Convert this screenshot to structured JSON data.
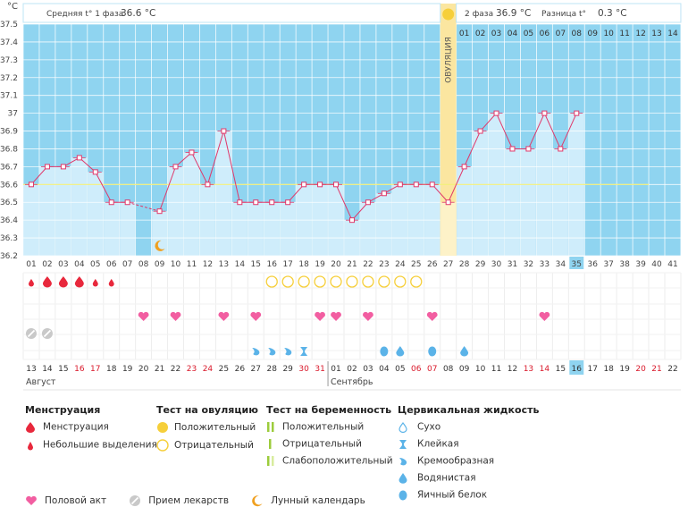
{
  "units": "°C",
  "phase1": {
    "label": "Средняя t° 1 фаза",
    "value": "36.6 °C"
  },
  "phase2": {
    "label": "2 фаза",
    "value": "36.9 °C"
  },
  "diff": {
    "label": "Разница t°",
    "value": "0.3 °C"
  },
  "ovulation_label": "ОВУЛЯЦИЯ",
  "colors": {
    "chart_bg": "#8fd4f0",
    "bar": "#cfedfb",
    "line": "#e0386a",
    "ovulation": "#fbe6a0",
    "sun": "#f6cf3a",
    "heart": "#f25ea1",
    "drop": "#e8283c",
    "water": "#5bb3e8",
    "accent_day": "#8fd4f0",
    "sunday": "#d9182a"
  },
  "chart_data": {
    "type": "line",
    "y_ticks": [
      "37.5",
      "37.4",
      "37.3",
      "37.2",
      "37.1",
      "37",
      "36.9",
      "36.8",
      "36.7",
      "36.6",
      "36.5",
      "36.4",
      "36.3",
      "36.2"
    ],
    "ylim": [
      36.2,
      37.5
    ],
    "cycle_days": [
      "01",
      "02",
      "03",
      "04",
      "05",
      "06",
      "07",
      "08",
      "09",
      "10",
      "11",
      "12",
      "13",
      "14",
      "15",
      "16",
      "17",
      "18",
      "19",
      "20",
      "21",
      "22",
      "23",
      "24",
      "25",
      "26",
      "27",
      "28",
      "29",
      "30",
      "31",
      "32",
      "33",
      "34",
      "35",
      "36",
      "37",
      "38",
      "39",
      "40",
      "41"
    ],
    "post_ovulation_days": [
      "01",
      "02",
      "03",
      "04",
      "05",
      "06",
      "07",
      "08",
      "09",
      "10",
      "11",
      "12",
      "13",
      "14"
    ],
    "temps": [
      36.6,
      36.7,
      36.7,
      36.75,
      36.67,
      36.5,
      36.5,
      null,
      36.45,
      36.7,
      36.78,
      36.6,
      36.9,
      36.5,
      36.5,
      36.5,
      36.5,
      36.6,
      36.6,
      36.6,
      36.4,
      36.5,
      36.55,
      36.6,
      36.6,
      36.6,
      36.5,
      36.7,
      36.9,
      37.0,
      36.8,
      36.8,
      37.0,
      36.8,
      37.0,
      null,
      null,
      null,
      null,
      null,
      null
    ],
    "dashed_segment": [
      7,
      9
    ],
    "coverline": 36.6,
    "ovulation_day": "27",
    "current_day": "35",
    "calendar_days": [
      "13",
      "14",
      "15",
      "16",
      "17",
      "18",
      "19",
      "20",
      "21",
      "22",
      "23",
      "24",
      "25",
      "26",
      "27",
      "28",
      "29",
      "30",
      "31",
      "01",
      "02",
      "03",
      "04",
      "05",
      "06",
      "07",
      "08",
      "09",
      "10",
      "11",
      "12",
      "13",
      "14",
      "15",
      "16",
      "17",
      "18",
      "19",
      "20",
      "21",
      "22"
    ],
    "weekend_days": [
      3,
      4,
      10,
      11,
      17,
      18,
      24,
      25,
      31,
      32,
      38,
      39
    ],
    "current_cal_index": 34,
    "month_labels": [
      {
        "index": 0,
        "label": "Август"
      },
      {
        "index": 19,
        "label": "Сентябрь"
      }
    ],
    "moon_day_index": 8,
    "menstruation": [
      {
        "i": 0,
        "type": "small"
      },
      {
        "i": 1,
        "type": "big"
      },
      {
        "i": 2,
        "type": "big"
      },
      {
        "i": 3,
        "type": "big"
      },
      {
        "i": 4,
        "type": "small"
      },
      {
        "i": 5,
        "type": "small"
      }
    ],
    "ovulation_tests": [
      15,
      16,
      17,
      18,
      19,
      20,
      21,
      22,
      23,
      24
    ],
    "hearts": [
      7,
      9,
      12,
      14,
      18,
      19,
      21,
      25,
      32
    ],
    "medicine": [
      0,
      1
    ],
    "cervical": [
      {
        "i": 14,
        "type": "creamy"
      },
      {
        "i": 15,
        "type": "creamy"
      },
      {
        "i": 16,
        "type": "creamy"
      },
      {
        "i": 17,
        "type": "sticky"
      },
      {
        "i": 22,
        "type": "eggwhite"
      },
      {
        "i": 23,
        "type": "watery"
      },
      {
        "i": 25,
        "type": "eggwhite"
      },
      {
        "i": 27,
        "type": "watery"
      }
    ]
  },
  "legend": {
    "menstruation": {
      "title": "Менструация",
      "items": [
        "Менструация",
        "Небольшие выделения"
      ]
    },
    "ovulation_test": {
      "title": "Тест на овуляцию",
      "items": [
        "Положительный",
        "Отрицательный"
      ]
    },
    "pregnancy_test": {
      "title": "Тест на беременность",
      "items": [
        "Положительный",
        "Отрицательный",
        "Слабоположительный"
      ]
    },
    "cervical": {
      "title": "Цервикальная жидкость",
      "items": [
        "Сухо",
        "Клейкая",
        "Кремообразная",
        "Водянистая",
        "Яичный белок"
      ]
    },
    "bottom": [
      "Половой акт",
      "Прием лекарств",
      "Лунный календарь"
    ]
  }
}
